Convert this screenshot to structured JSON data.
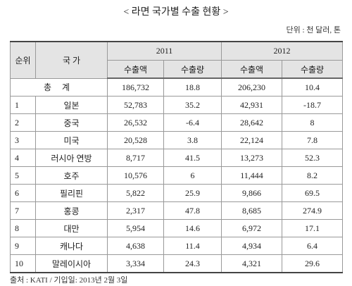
{
  "title": "< 라면 국가별 수출 현황 >",
  "unit": "단위 : 천 달러, 톤",
  "table": {
    "header": {
      "rank": "순위",
      "country": "국 가",
      "years": [
        "2011",
        "2012"
      ],
      "columns": [
        "수출액",
        "수출량",
        "수출액",
        "수출량"
      ]
    },
    "total": {
      "label": "총 계",
      "values": [
        "186,732",
        "18.8",
        "206,230",
        "10.4"
      ]
    },
    "rows": [
      [
        "1",
        "일본",
        "52,783",
        "35.2",
        "42,931",
        "-18.7"
      ],
      [
        "2",
        "중국",
        "26,532",
        "-6.4",
        "28,642",
        "8"
      ],
      [
        "3",
        "미국",
        "20,528",
        "3.8",
        "22,124",
        "7.8"
      ],
      [
        "4",
        "러시아 연방",
        "8,717",
        "41.5",
        "13,273",
        "52.3"
      ],
      [
        "5",
        "호주",
        "10,576",
        "6",
        "11,444",
        "8.2"
      ],
      [
        "6",
        "필리핀",
        "5,822",
        "25.9",
        "9,866",
        "69.5"
      ],
      [
        "7",
        "홍콩",
        "2,317",
        "47.8",
        "8,685",
        "274.9"
      ],
      [
        "8",
        "대만",
        "5,954",
        "14.6",
        "6,972",
        "17.1"
      ],
      [
        "9",
        "캐나다",
        "4,638",
        "11.4",
        "4,934",
        "6.4"
      ],
      [
        "10",
        "말레이시아",
        "3,334",
        "24.3",
        "4,321",
        "29.6"
      ]
    ]
  },
  "source": "출처 : KATI / 기입일: 2013년 2월 3일"
}
